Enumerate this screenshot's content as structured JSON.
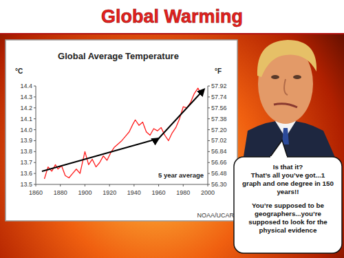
{
  "slide": {
    "title": "Global Warming",
    "speech_bubble": [
      [
        "Is that it?",
        "That’s all you’ve got...1",
        "graph and one degree in 150",
        "years!!"
      ],
      [
        "You’re supposed to be",
        "geographers...you’re",
        "supposed to look for the",
        "physical evidence"
      ]
    ]
  },
  "chart_data": {
    "type": "line",
    "title": "Global Average Temperature",
    "y_label": "°C",
    "y2_label": "°F",
    "annotations": [
      "5 year average",
      "NOAA/UCAR"
    ],
    "x": [
      1867,
      1870,
      1873,
      1876,
      1878,
      1881,
      1884,
      1887,
      1890,
      1893,
      1896,
      1898,
      1900,
      1903,
      1906,
      1909,
      1912,
      1915,
      1918,
      1921,
      1924,
      1927,
      1930,
      1933,
      1936,
      1939,
      1941,
      1944,
      1947,
      1950,
      1953,
      1956,
      1959,
      1962,
      1965,
      1968,
      1971,
      1974,
      1977,
      1980,
      1983,
      1986,
      1989,
      1992,
      1995,
      1997
    ],
    "series": [
      {
        "type": "line",
        "color": "#ff1a1a",
        "values": [
          13.55,
          13.66,
          13.62,
          13.68,
          13.64,
          13.67,
          13.58,
          13.56,
          13.6,
          13.64,
          13.6,
          13.7,
          13.8,
          13.68,
          13.73,
          13.66,
          13.7,
          13.76,
          13.72,
          13.79,
          13.84,
          13.87,
          13.9,
          13.94,
          13.98,
          14.05,
          14.09,
          14.04,
          14.07,
          13.98,
          13.95,
          14.01,
          13.99,
          14.02,
          13.95,
          13.9,
          13.97,
          14.02,
          14.1,
          14.21,
          14.2,
          14.25,
          14.33,
          14.38,
          14.32,
          14.36
        ]
      },
      {
        "type": "arrow",
        "color": "#000000",
        "x": [
          1865,
          1960,
          1997
        ],
        "values": [
          13.62,
          13.92,
          14.37
        ]
      }
    ],
    "xlim": [
      1860,
      2000
    ],
    "xticks": [
      1860,
      1880,
      1900,
      1920,
      1940,
      1960,
      1980,
      2000
    ],
    "ylim": [
      13.5,
      14.4
    ],
    "yticks": [
      13.5,
      13.6,
      13.7,
      13.8,
      13.9,
      {
        "value": 14,
        "label": "14.0"
      },
      14.1,
      14.2,
      14.3,
      14.4
    ],
    "y2lim": [
      56.3,
      57.92
    ],
    "y2ticks": [
      {
        "value": 56.3,
        "label": "56.30"
      },
      56.48,
      56.66,
      56.84,
      57.02,
      {
        "value": 57.2,
        "label": "57.20"
      },
      57.38,
      57.56,
      57.74,
      57.92
    ],
    "grid": false
  }
}
